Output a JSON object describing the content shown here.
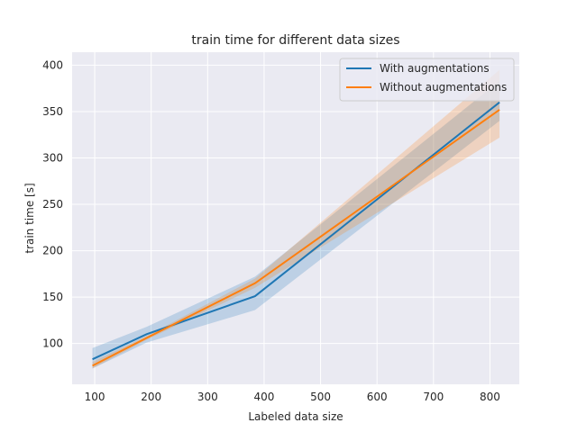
{
  "chart_data": {
    "type": "line",
    "title": "train time for different data sizes",
    "xlabel": "Labeled data size",
    "ylabel": "train time [s]",
    "xlim": [
      60,
      852
    ],
    "ylim": [
      56,
      414
    ],
    "xticks": [
      100,
      200,
      300,
      400,
      500,
      600,
      700,
      800
    ],
    "yticks": [
      100,
      150,
      200,
      250,
      300,
      350,
      400
    ],
    "grid": true,
    "legend_position": "top-right",
    "series": [
      {
        "name": "With augmentations",
        "color": "#1f77b4",
        "x": [
          96,
          192,
          384,
          817
        ],
        "y": [
          83,
          110,
          151,
          360
        ],
        "ci_lower": [
          73,
          101,
          136,
          340
        ],
        "ci_upper": [
          95,
          118,
          172,
          383
        ]
      },
      {
        "name": "Without augmentations",
        "color": "#ff7f0e",
        "x": [
          96,
          192,
          384,
          817
        ],
        "y": [
          76,
          106,
          165,
          352
        ],
        "ci_lower": [
          73,
          104,
          160,
          322
        ],
        "ci_upper": [
          80,
          108,
          170,
          395
        ]
      }
    ]
  }
}
